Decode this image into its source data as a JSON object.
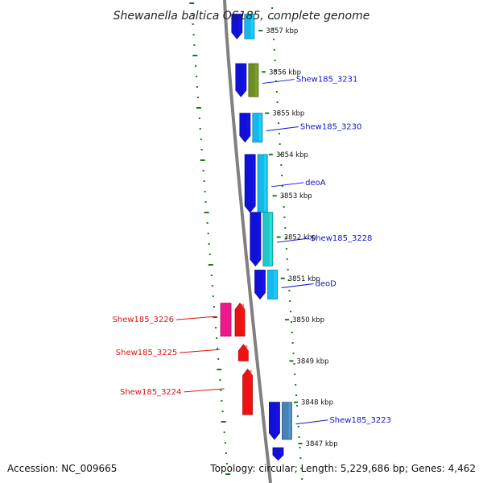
{
  "title": "Shewanella baltica OS185, complete genome",
  "footer": {
    "accession": "Accession: NC_009665",
    "summary": "Topology: circular; Length: 5,229,686 bp; Genes: 4,462"
  },
  "colors": {
    "backbone": "#808080",
    "dots": "#1a7a1a",
    "forward_label": "#1414c8",
    "reverse_label": "#dd1111"
  },
  "chart_data": {
    "type": "genome_map",
    "topology": "circular",
    "length_bp": 5229686,
    "gene_count": 4462,
    "kbp_ticks": [
      "3857 kbp",
      "3856 kbp",
      "3855 kbp",
      "3854 kbp",
      "3853 kbp",
      "3852 kbp",
      "3851 kbp",
      "3850 kbp",
      "3849 kbp",
      "3848 kbp",
      "3847 kbp"
    ],
    "forward_genes": [
      {
        "label": "",
        "start_kb": 3857.4,
        "end_kb": 3856.8,
        "color": "#1010d8",
        "cog_color": "#15b8ee"
      },
      {
        "label": "Shew185_3231",
        "start_kb": 3856.2,
        "end_kb": 3855.4,
        "color": "#1010d8",
        "cog_color": "#6b8e23"
      },
      {
        "label": "Shew185_3230",
        "start_kb": 3855.0,
        "end_kb": 3854.3,
        "color": "#1010d8",
        "cog_color": "#15b8ee"
      },
      {
        "label": "deoA",
        "start_kb": 3854.0,
        "end_kb": 3852.6,
        "color": "#1010d8",
        "cog_color": "#15b8ee"
      },
      {
        "label": "Shew185_3228",
        "start_kb": 3852.6,
        "end_kb": 3851.3,
        "color": "#1010d8",
        "cog_color": "#20c8c8"
      },
      {
        "label": "deoD",
        "start_kb": 3851.2,
        "end_kb": 3850.5,
        "color": "#1010d8",
        "cog_color": "#15b8ee"
      },
      {
        "label": "Shew185_3223",
        "start_kb": 3848.0,
        "end_kb": 3847.1,
        "color": "#1010d8",
        "cog_color": "#4682b4"
      },
      {
        "label": "",
        "start_kb": 3846.9,
        "end_kb": 3846.6,
        "color": "#1010d8",
        "cog_color": ""
      }
    ],
    "reverse_genes": [
      {
        "label": "Shew185_3226",
        "start_kb": 3850.4,
        "end_kb": 3849.6,
        "color": "#ee1111",
        "cog_color": "#ee1a8c"
      },
      {
        "label": "Shew185_3225",
        "start_kb": 3849.4,
        "end_kb": 3849.0,
        "color": "#ee1111",
        "cog_color": ""
      },
      {
        "label": "Shew185_3224",
        "start_kb": 3848.8,
        "end_kb": 3847.7,
        "color": "#ee1111",
        "cog_color": ""
      }
    ]
  }
}
